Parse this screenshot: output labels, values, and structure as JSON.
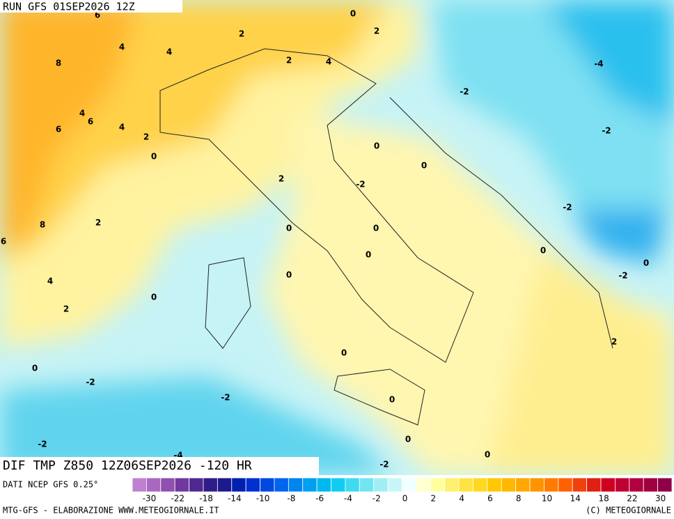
{
  "header": {
    "run": "RUN GFS 01SEP2026 12Z"
  },
  "map": {
    "contour_labels": [
      "6",
      "0",
      "2",
      "2",
      "4",
      "4",
      "8",
      "2",
      "4",
      "-4",
      "-2",
      "4",
      "6",
      "6",
      "4",
      "2",
      "-2",
      "0",
      "0",
      "0",
      "2",
      "-2",
      "-2",
      "8",
      "2",
      "0",
      "0",
      "6",
      "0",
      "0",
      "0",
      "0",
      "-2",
      "4",
      "0",
      "2",
      "2",
      "0",
      "0",
      "-2",
      "-2",
      "0",
      "0",
      "-2",
      "-4",
      "0",
      "-2"
    ]
  },
  "footer": {
    "title": "DIF TMP Z850 12Z06SEP2026 -120 HR",
    "source": "DATI NCEP GFS 0.25°",
    "credit": "MTG-GFS - ELABORAZIONE WWW.METEOGIORNALE.IT",
    "copyright": "(C) METEOGIORNALE"
  },
  "colorbar": {
    "labels": [
      "-30",
      "-22",
      "-18",
      "-14",
      "-10",
      "-8",
      "-6",
      "-4",
      "-2",
      "0",
      "2",
      "4",
      "6",
      "8",
      "10",
      "14",
      "18",
      "22",
      "30"
    ],
    "colors": [
      "#c080d0",
      "#a868c0",
      "#9050b0",
      "#7038a0",
      "#502890",
      "#301c88",
      "#1a1a8c",
      "#0020b0",
      "#0030d0",
      "#0048e0",
      "#0064f0",
      "#0084f0",
      "#00a0f0",
      "#00b8f0",
      "#10ccf0",
      "#40daf0",
      "#70e6f0",
      "#a0eef4",
      "#c8f6f8",
      "#f0ffff",
      "#ffffd0",
      "#ffffa0",
      "#fff070",
      "#ffe440",
      "#ffd820",
      "#ffc800",
      "#ffb800",
      "#ffa800",
      "#ff9400",
      "#ff7c00",
      "#ff6000",
      "#f04010",
      "#e02010",
      "#d00020",
      "#c00030",
      "#b00040",
      "#a00040",
      "#900048"
    ]
  }
}
